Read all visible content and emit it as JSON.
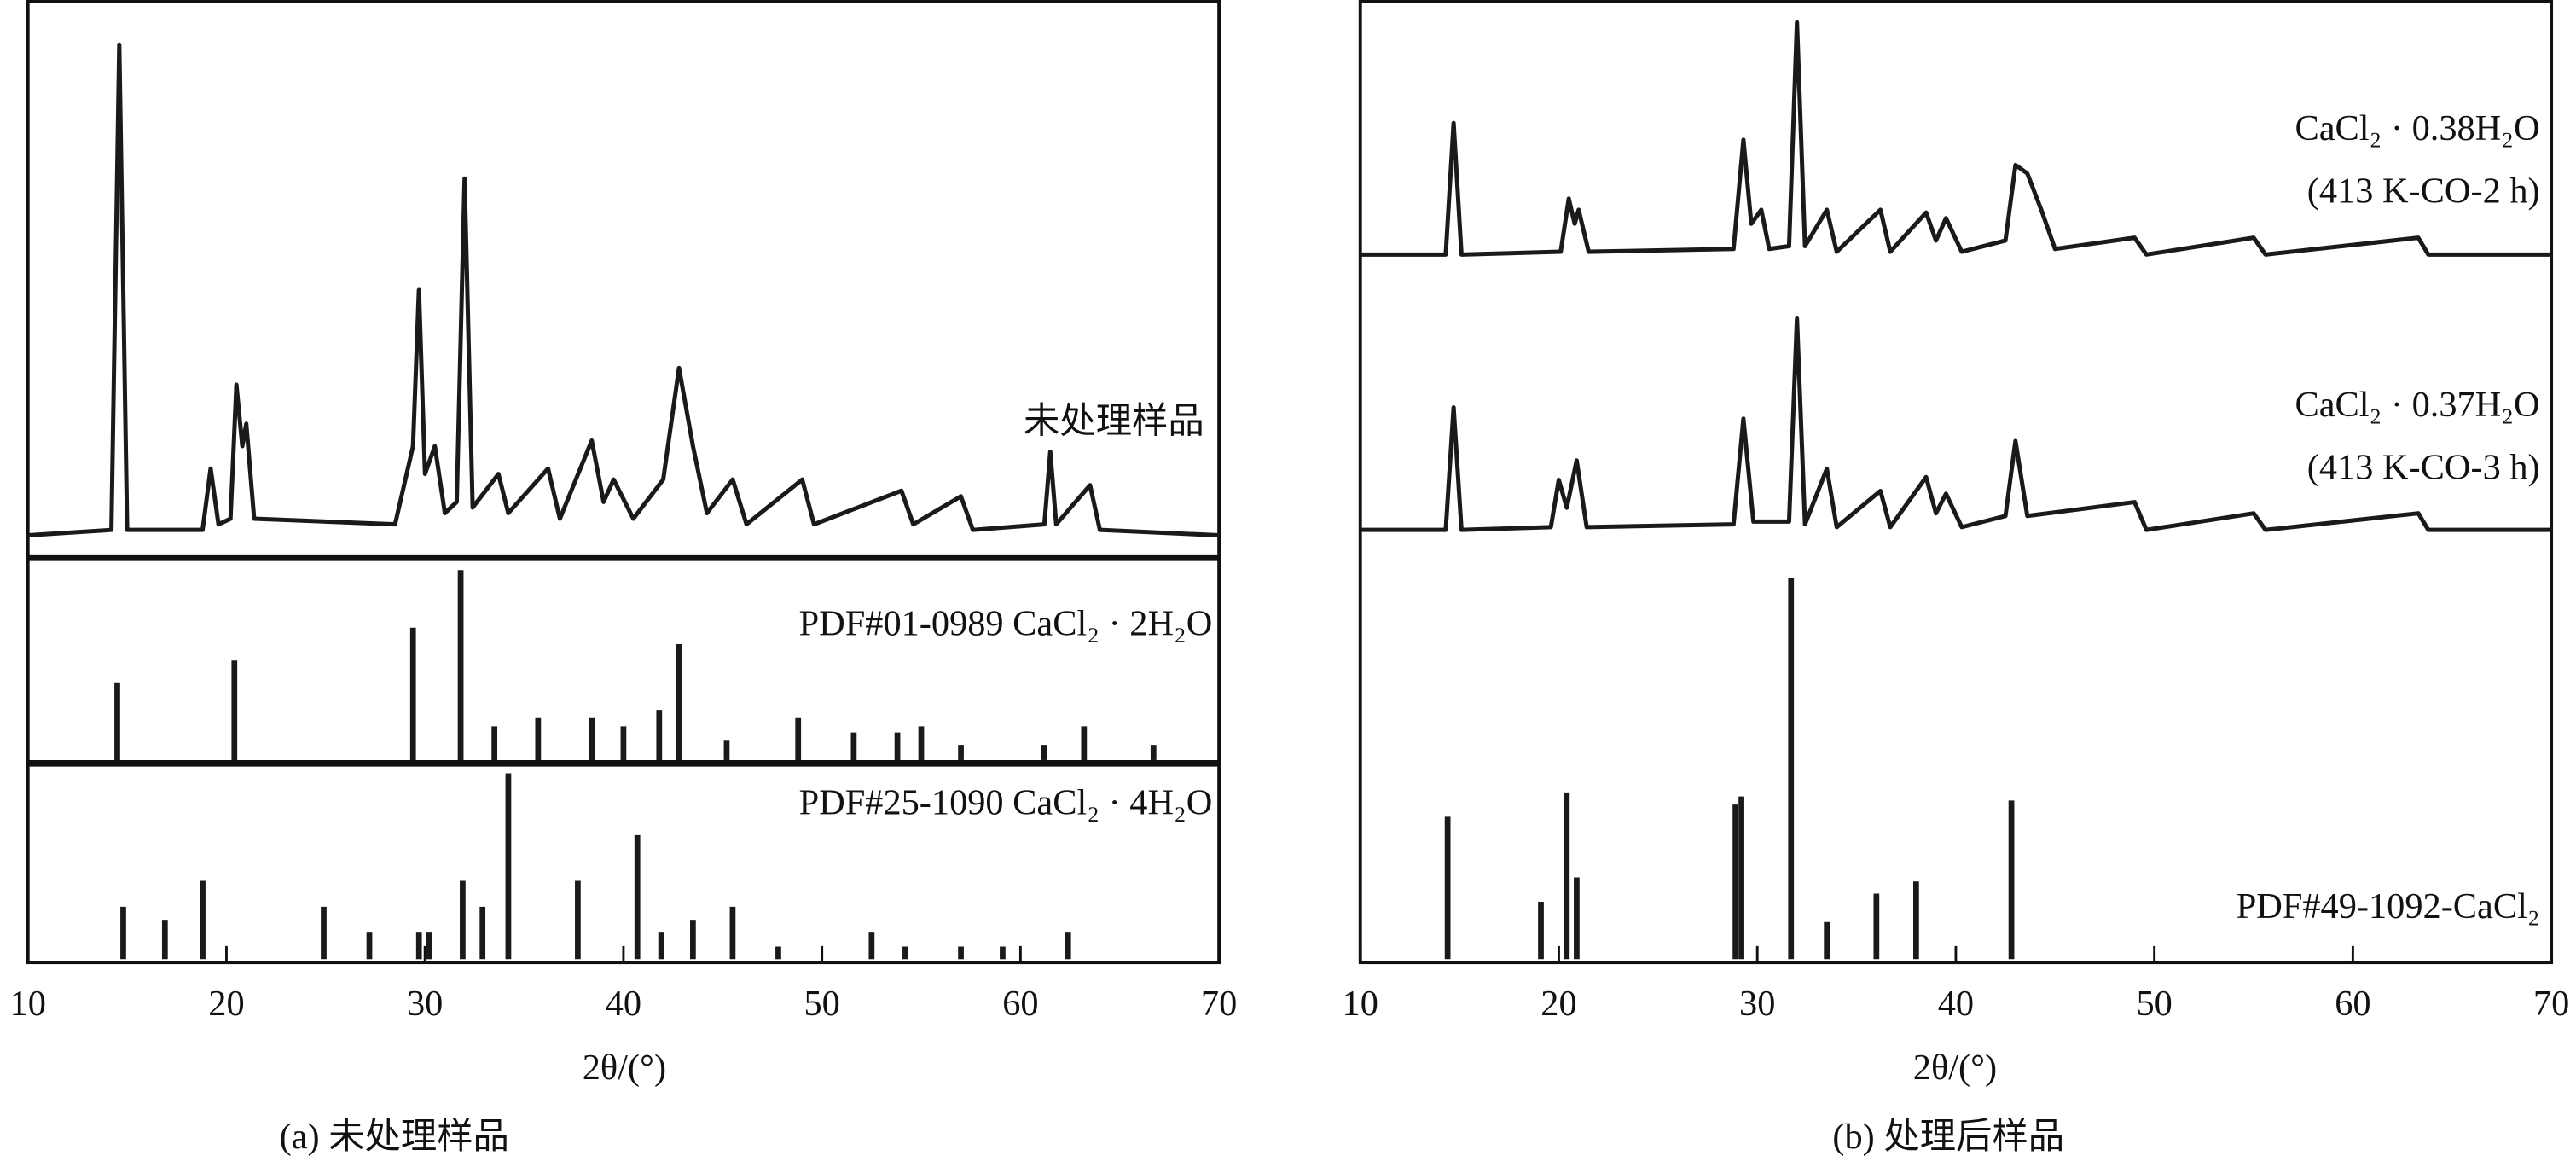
{
  "chart_data": [
    {
      "type": "line",
      "caption": "(a) 未处理样品",
      "xlabel": "2θ/(°)",
      "xlim": [
        10,
        70
      ],
      "xticks": [
        10,
        20,
        30,
        40,
        50,
        60,
        70
      ],
      "series": [
        {
          "type": "line",
          "name": "未处理样品",
          "color": "#1a1a1a",
          "x": [
            10,
            14.2,
            14.6,
            15.0,
            18.8,
            19.2,
            19.6,
            20.2,
            20.5,
            20.8,
            21.0,
            21.4,
            28.5,
            29.4,
            29.7,
            30.0,
            30.5,
            31.0,
            31.6,
            32.0,
            32.4,
            33.7,
            34.2,
            36.2,
            36.8,
            38.4,
            39.0,
            39.5,
            40.5,
            42.0,
            42.8,
            43.5,
            44.2,
            45.5,
            46.2,
            49.0,
            49.6,
            54.0,
            54.6,
            57.0,
            57.6,
            61.2,
            61.5,
            61.8,
            63.5,
            64.0,
            70
          ],
          "values": [
            4,
            5,
            92,
            5,
            5,
            16,
            6,
            7,
            31,
            20,
            24,
            7,
            6,
            20,
            48,
            15,
            20,
            8,
            10,
            68,
            9,
            15,
            8,
            16,
            7,
            21,
            10,
            14,
            7,
            14,
            34,
            20,
            8,
            14,
            6,
            14,
            6,
            12,
            6,
            11,
            5,
            6,
            19,
            6,
            13,
            5,
            4
          ]
        },
        {
          "type": "stick",
          "name": "PDF#01-0989 CaCl₂ · 2H₂O",
          "color": "#1a1a1a",
          "x": [
            14.5,
            20.4,
            29.4,
            31.8,
            33.5,
            35.7,
            38.4,
            40.0,
            41.8,
            42.8,
            45.2,
            48.8,
            51.6,
            53.8,
            55.0,
            57.0,
            61.2,
            63.2,
            66.7
          ],
          "values": [
            39,
            50,
            66,
            94,
            18,
            22,
            22,
            18,
            26,
            58,
            11,
            22,
            15,
            15,
            18,
            9,
            9,
            18,
            9
          ]
        },
        {
          "type": "stick",
          "name": "PDF#25-1090 CaCl₂ · 4H₂O",
          "color": "#1a1a1a",
          "x": [
            14.8,
            16.9,
            18.8,
            24.9,
            27.2,
            29.7,
            30.2,
            31.9,
            32.9,
            34.2,
            37.7,
            40.7,
            41.9,
            43.5,
            45.5,
            47.8,
            52.5,
            54.2,
            57.0,
            59.1,
            62.4
          ],
          "values": [
            28,
            21,
            41,
            28,
            15,
            15,
            15,
            41,
            28,
            95,
            41,
            64,
            15,
            21,
            28,
            8,
            15,
            8,
            8,
            8,
            15
          ]
        }
      ]
    },
    {
      "type": "line",
      "caption": "(b) 处理后样品",
      "xlabel": "2θ/(°)",
      "xlim": [
        10,
        70
      ],
      "xticks": [
        10,
        20,
        30,
        40,
        50,
        60,
        70
      ],
      "series": [
        {
          "type": "line",
          "name": "CaCl₂ · 0.38H₂O",
          "condition": "(413 K-CO-2 h)",
          "color": "#1a1a1a",
          "x": [
            10,
            14.3,
            14.7,
            15.1,
            20.1,
            20.5,
            20.8,
            21.0,
            21.5,
            28.8,
            29.3,
            29.7,
            30.2,
            30.6,
            31.6,
            32.0,
            32.4,
            33.5,
            34.0,
            36.2,
            36.7,
            38.5,
            39.0,
            39.5,
            40.3,
            42.5,
            43.0,
            43.6,
            44.3,
            45.0,
            49.0,
            49.6,
            55.0,
            55.6,
            63.3,
            63.8,
            70
          ],
          "values": [
            9,
            9,
            56,
            9,
            10,
            29,
            20,
            25,
            10,
            11,
            50,
            20,
            25,
            11,
            12,
            92,
            12,
            25,
            10,
            25,
            10,
            24,
            14,
            22,
            10,
            14,
            41,
            38,
            25,
            11,
            15,
            9,
            15,
            9,
            15,
            9,
            9
          ]
        },
        {
          "type": "line",
          "name": "CaCl₂ · 0.37H₂O",
          "condition": "(413 K-CO-3 h)",
          "color": "#1a1a1a",
          "x": [
            10,
            14.3,
            14.7,
            15.1,
            19.6,
            20.0,
            20.4,
            20.9,
            21.4,
            28.8,
            29.3,
            29.8,
            31.6,
            32.0,
            32.4,
            33.5,
            34.0,
            36.2,
            36.7,
            38.5,
            39.0,
            39.5,
            40.3,
            42.5,
            43.0,
            43.6,
            49.0,
            49.6,
            55.0,
            55.6,
            63.3,
            63.8,
            70
          ],
          "values": [
            10,
            10,
            54,
            10,
            11,
            28,
            18,
            35,
            11,
            12,
            50,
            13,
            13,
            86,
            12,
            32,
            11,
            24,
            11,
            29,
            16,
            23,
            11,
            15,
            42,
            15,
            20,
            10,
            16,
            10,
            16,
            10,
            10
          ]
        },
        {
          "type": "stick",
          "name": "PDF#49-1092-CaCl₂",
          "color": "#1a1a1a",
          "x": [
            14.4,
            19.1,
            20.4,
            20.9,
            28.9,
            29.2,
            31.7,
            33.5,
            36.0,
            38.0,
            42.8
          ],
          "values": [
            36,
            15,
            42,
            21,
            39,
            41,
            95,
            10,
            17,
            20,
            40
          ]
        }
      ]
    }
  ]
}
